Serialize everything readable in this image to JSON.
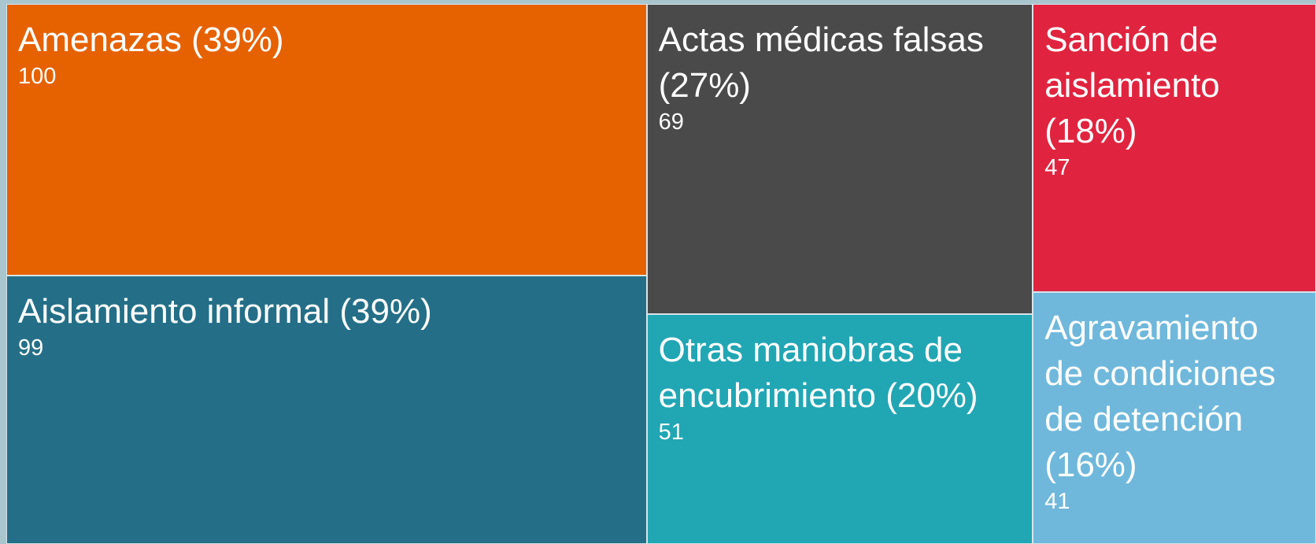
{
  "chart_data": {
    "type": "treemap",
    "categories": [
      "Amenazas (39%)",
      "Aislamiento informal (39%)",
      "Actas médicas falsas (27%)",
      "Otras maniobras de encubrimiento (20%)",
      "Sanción de aislamiento (18%)",
      "Agravamiento de condiciones de detención (16%)"
    ],
    "values": [
      100,
      99,
      69,
      51,
      47,
      41
    ],
    "colors": [
      "#e66100",
      "#246f87",
      "#4a4a4a",
      "#21a6b4",
      "#e0243f",
      "#6fb8db"
    ]
  }
}
